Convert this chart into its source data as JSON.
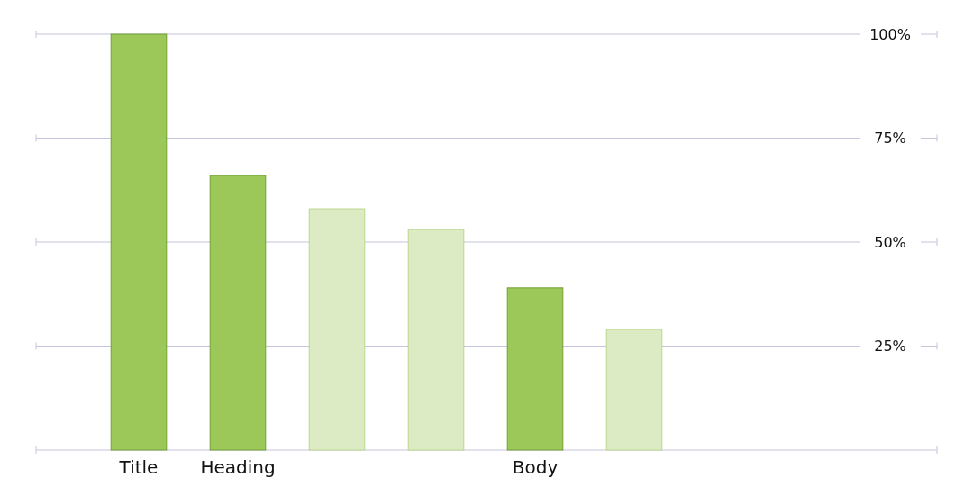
{
  "chart_data": {
    "type": "bar",
    "categories": [
      "Title",
      "Heading",
      null,
      null,
      "Body",
      null,
      null,
      null
    ],
    "values": [
      100,
      66,
      58,
      53,
      39,
      29,
      null,
      null
    ],
    "colors": [
      "#9bc858",
      "#9bc858",
      "#ddebc5",
      "#ddebc5",
      "#9bc858",
      "#ddebc5",
      null,
      null
    ],
    "ylim": [
      0,
      100
    ],
    "yticks": [
      {
        "value": 0,
        "label": null
      },
      {
        "value": 25,
        "label": "25%"
      },
      {
        "value": 50,
        "label": "50%"
      },
      {
        "value": 75,
        "label": "75%"
      },
      {
        "value": 100,
        "label": "100%"
      }
    ],
    "grid": "y"
  }
}
